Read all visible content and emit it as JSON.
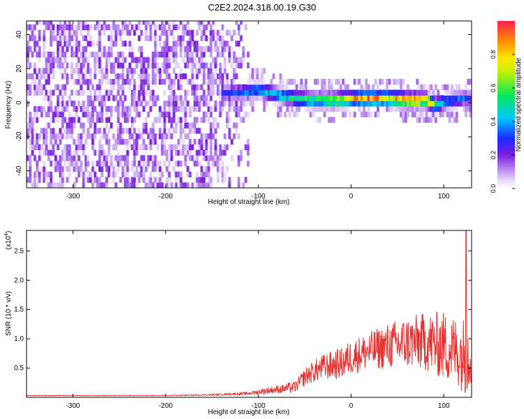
{
  "title": "C2E2.2024.318.00.19.G30",
  "chart_data": [
    {
      "type": "heatmap",
      "xlabel": "Height of straight line (km)",
      "ylabel": "Frequency (Hz)",
      "xlim": [
        -350,
        130
      ],
      "ylim": [
        -50,
        48
      ],
      "x_ticks": [
        -300,
        -200,
        -100,
        0,
        100
      ],
      "y_ticks": [
        -40,
        -20,
        0,
        20,
        40
      ],
      "colorbar": {
        "label": "Normalized spectral amplitude",
        "range": [
          0,
          1
        ],
        "ticks": [
          0.0,
          0.2,
          0.4,
          0.6,
          0.8
        ],
        "tick_labels": [
          "0.0",
          "0.2",
          "0.4",
          "0.6",
          "0.8"
        ]
      },
      "noise_region_x": [
        -350,
        -112
      ],
      "ridge": {
        "x": [
          -140,
          -120,
          -100,
          -80,
          -60,
          -40,
          -20,
          0,
          20,
          40,
          60,
          80,
          90,
          100,
          120,
          130
        ],
        "freq_hz": [
          4,
          5,
          6,
          3,
          1,
          0,
          0,
          1,
          1,
          1,
          0,
          0,
          -3,
          -1,
          1,
          1
        ],
        "peak_amplitude": [
          0.3,
          0.35,
          0.45,
          0.5,
          0.55,
          0.6,
          0.75,
          0.85,
          0.9,
          0.85,
          0.95,
          0.9,
          0.6,
          0.45,
          0.35,
          0.3
        ]
      }
    },
    {
      "type": "line",
      "xlabel": "Height of straight line (km)",
      "ylabel": "SNR (10 * v/v)",
      "y_multiplier": "(x10",
      "y_multiplier_exp": "4",
      "y_multiplier_close": ")",
      "xlim": [
        -350,
        130
      ],
      "ylim": [
        0,
        2.85
      ],
      "x_ticks": [
        -300,
        -200,
        -100,
        0,
        100
      ],
      "y_ticks": [
        0.5,
        1.0,
        1.5,
        2.0,
        2.5
      ],
      "y_tick_labels": [
        "0.5",
        "1.0",
        "1.5",
        "2.0",
        "2.5"
      ],
      "color": "#e8312f",
      "envelope": {
        "x": [
          -350,
          -200,
          -150,
          -110,
          -90,
          -75,
          -60,
          -50,
          -45,
          -30,
          -10,
          0,
          20,
          40,
          60,
          80,
          100,
          115,
          125,
          130
        ],
        "base": [
          0.03,
          0.03,
          0.04,
          0.06,
          0.1,
          0.12,
          0.15,
          0.3,
          0.35,
          0.45,
          0.5,
          0.6,
          0.7,
          0.75,
          0.8,
          0.8,
          0.7,
          0.6,
          0.5,
          0.6
        ],
        "amp": [
          0.01,
          0.01,
          0.02,
          0.05,
          0.12,
          0.15,
          0.2,
          0.3,
          0.35,
          0.45,
          0.55,
          0.6,
          0.65,
          0.8,
          0.9,
          1.0,
          1.2,
          1.2,
          1.4,
          1.0
        ]
      },
      "peak_y": 2.85
    }
  ]
}
